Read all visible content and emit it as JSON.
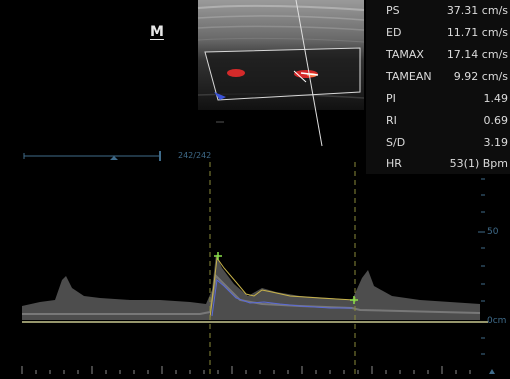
{
  "header": {
    "mode_logo": "M"
  },
  "measurements": [
    {
      "label": "PS",
      "value": "37.31 cm/s"
    },
    {
      "label": "ED",
      "value": "11.71 cm/s"
    },
    {
      "label": "TAMAX",
      "value": "17.14 cm/s"
    },
    {
      "label": "TAMEAN",
      "value": "9.92 cm/s"
    },
    {
      "label": "PI",
      "value": "1.49"
    },
    {
      "label": "RI",
      "value": "0.69"
    },
    {
      "label": "S/D",
      "value": "3.19"
    },
    {
      "label": "HR",
      "value": "53(1) Bpm"
    }
  ],
  "cine": {
    "counter": "242/242"
  },
  "velocity_scale": {
    "mark_50": "50",
    "baseline": "0cm"
  },
  "colors": {
    "background": "#000000",
    "scale_blue": "#3f6b8a",
    "flow_red": "#d42a2a",
    "flow_blue": "#3a52d8",
    "caliper_green": "#8be04a",
    "envelope_yellow": "#c8b34a",
    "baseline_gray": "#c8c890",
    "cursor_dashed": "#8a8a3a"
  }
}
